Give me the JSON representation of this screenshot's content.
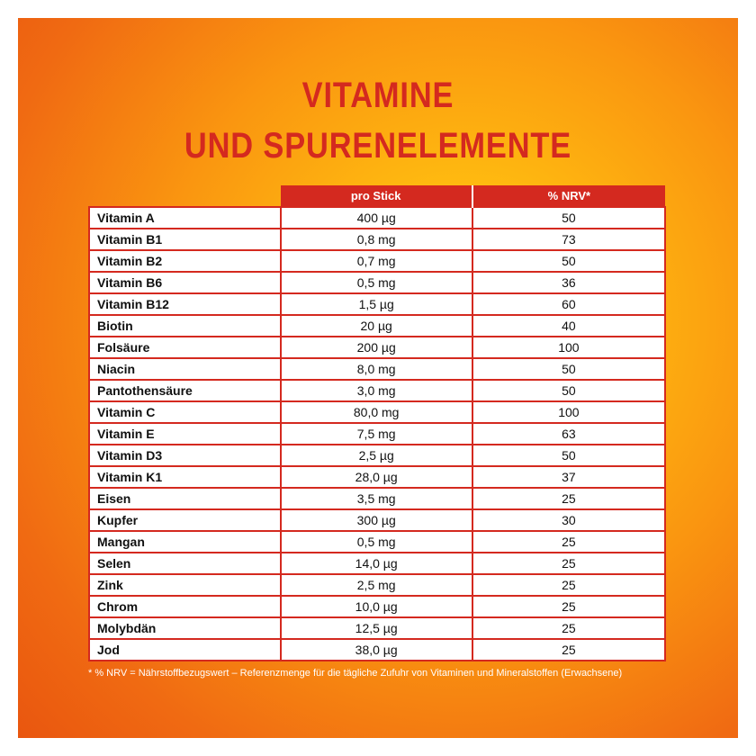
{
  "title": {
    "line1": "VITAMINE",
    "line2": "UND SPURENELEMENTE"
  },
  "table": {
    "headers": {
      "name": "",
      "amount": "pro Stick",
      "nrv": "% NRV*"
    },
    "rows": [
      {
        "name": "Vitamin A",
        "amount": "400 µg",
        "nrv": "50"
      },
      {
        "name": "Vitamin B1",
        "amount": "0,8 mg",
        "nrv": "73"
      },
      {
        "name": "Vitamin B2",
        "amount": "0,7 mg",
        "nrv": "50"
      },
      {
        "name": "Vitamin B6",
        "amount": "0,5 mg",
        "nrv": "36"
      },
      {
        "name": "Vitamin B12",
        "amount": "1,5 µg",
        "nrv": "60"
      },
      {
        "name": "Biotin",
        "amount": "20 µg",
        "nrv": "40"
      },
      {
        "name": "Folsäure",
        "amount": "200 µg",
        "nrv": "100"
      },
      {
        "name": "Niacin",
        "amount": "8,0 mg",
        "nrv": "50"
      },
      {
        "name": "Pantothensäure",
        "amount": "3,0 mg",
        "nrv": "50"
      },
      {
        "name": "Vitamin C",
        "amount": "80,0 mg",
        "nrv": "100"
      },
      {
        "name": "Vitamin E",
        "amount": "7,5 mg",
        "nrv": "63"
      },
      {
        "name": "Vitamin D3",
        "amount": "2,5 µg",
        "nrv": "50"
      },
      {
        "name": "Vitamin K1",
        "amount": "28,0 µg",
        "nrv": "37"
      },
      {
        "name": "Eisen",
        "amount": "3,5 mg",
        "nrv": "25"
      },
      {
        "name": "Kupfer",
        "amount": "300 µg",
        "nrv": "30"
      },
      {
        "name": "Mangan",
        "amount": "0,5 mg",
        "nrv": "25"
      },
      {
        "name": "Selen",
        "amount": "14,0 µg",
        "nrv": "25"
      },
      {
        "name": "Zink",
        "amount": "2,5 mg",
        "nrv": "25"
      },
      {
        "name": "Chrom",
        "amount": "10,0 µg",
        "nrv": "25"
      },
      {
        "name": "Molybdän",
        "amount": "12,5 µg",
        "nrv": "25"
      },
      {
        "name": "Jod",
        "amount": "38,0 µg",
        "nrv": "25"
      }
    ]
  },
  "footnote": "* % NRV = Nährstoffbezugswert – Referenzmenge für die tägliche Zufuhr von Vitaminen und Mineralstoffen (Erwachsene)",
  "colors": {
    "accent_red": "#d4291f",
    "background_orange": "#f5891c",
    "background_yellow": "#ffcc15"
  }
}
